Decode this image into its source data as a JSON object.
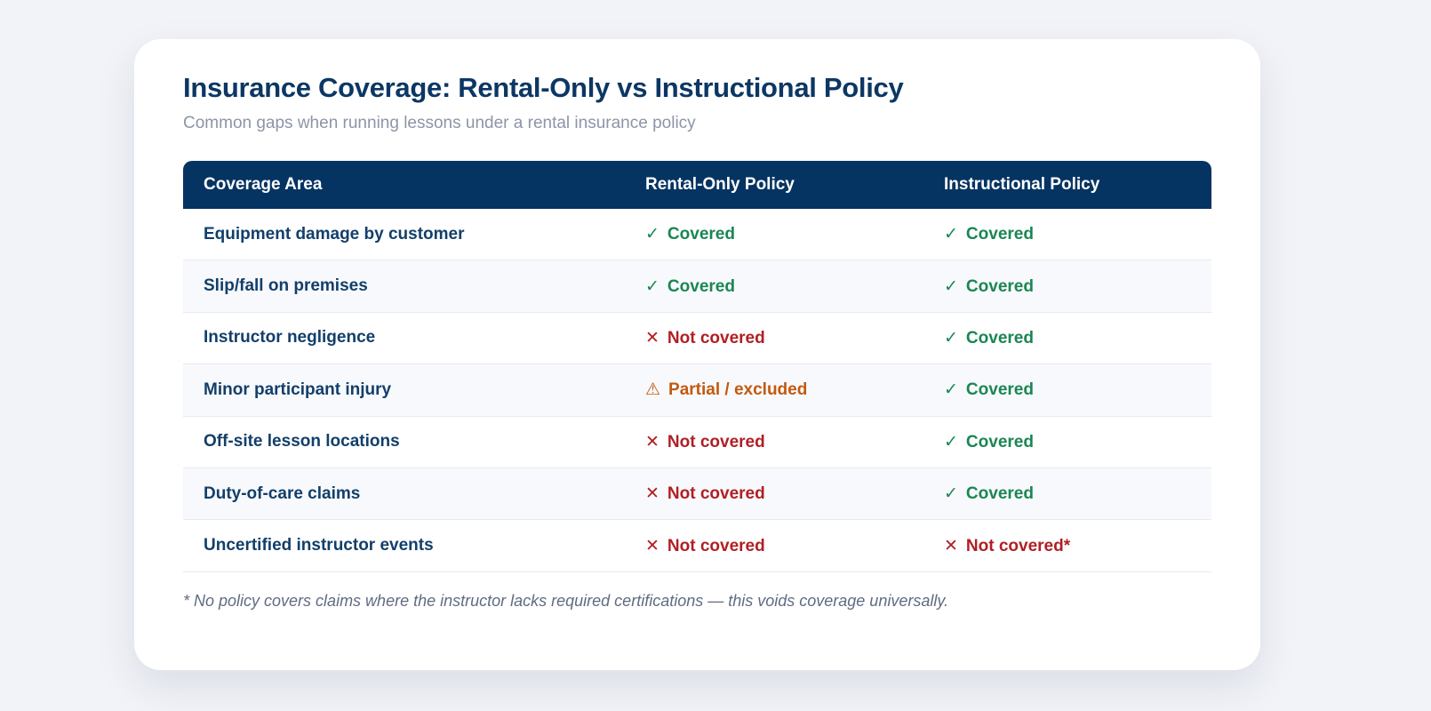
{
  "page": {
    "title": "Insurance Coverage: Rental-Only vs Instructional Policy",
    "subtitle": "Common gaps when running lessons under a rental insurance policy",
    "footnote": "* No policy covers claims where the instructor lacks required certifications — this voids coverage universally."
  },
  "colors": {
    "header_bg": "#063462",
    "title_navy": "#0c3764",
    "row_label_navy": "#123f6a",
    "covered_green": "#1a8653",
    "not_covered_red": "#b01f24",
    "partial_orange": "#c3590f",
    "page_bg": "#f1f3f8",
    "card_bg": "#ffffff"
  },
  "table": {
    "columns": [
      "Coverage Area",
      "Rental-Only Policy",
      "Instructional Policy"
    ],
    "rows": [
      {
        "area": "Equipment damage by customer",
        "rental": {
          "status": "covered",
          "icon": "check-icon",
          "glyph": "✓",
          "label": "Covered"
        },
        "instructional": {
          "status": "covered",
          "icon": "check-icon",
          "glyph": "✓",
          "label": "Covered"
        }
      },
      {
        "area": "Slip/fall on premises",
        "rental": {
          "status": "covered",
          "icon": "check-icon",
          "glyph": "✓",
          "label": "Covered"
        },
        "instructional": {
          "status": "covered",
          "icon": "check-icon",
          "glyph": "✓",
          "label": "Covered"
        }
      },
      {
        "area": "Instructor negligence",
        "rental": {
          "status": "not_covered",
          "icon": "cross-icon",
          "glyph": "✕",
          "label": "Not covered"
        },
        "instructional": {
          "status": "covered",
          "icon": "check-icon",
          "glyph": "✓",
          "label": "Covered"
        }
      },
      {
        "area": "Minor participant injury",
        "rental": {
          "status": "partial",
          "icon": "warning-icon",
          "glyph": "⚠",
          "label": "Partial / excluded"
        },
        "instructional": {
          "status": "covered",
          "icon": "check-icon",
          "glyph": "✓",
          "label": "Covered"
        }
      },
      {
        "area": "Off-site lesson locations",
        "rental": {
          "status": "not_covered",
          "icon": "cross-icon",
          "glyph": "✕",
          "label": "Not covered"
        },
        "instructional": {
          "status": "covered",
          "icon": "check-icon",
          "glyph": "✓",
          "label": "Covered"
        }
      },
      {
        "area": "Duty-of-care claims",
        "rental": {
          "status": "not_covered",
          "icon": "cross-icon",
          "glyph": "✕",
          "label": "Not covered"
        },
        "instructional": {
          "status": "covered",
          "icon": "check-icon",
          "glyph": "✓",
          "label": "Covered"
        }
      },
      {
        "area": "Uncertified instructor events",
        "rental": {
          "status": "not_covered",
          "icon": "cross-icon",
          "glyph": "✕",
          "label": "Not covered"
        },
        "instructional": {
          "status": "not_covered",
          "icon": "cross-icon",
          "glyph": "✕",
          "label": "Not covered*"
        }
      }
    ]
  }
}
